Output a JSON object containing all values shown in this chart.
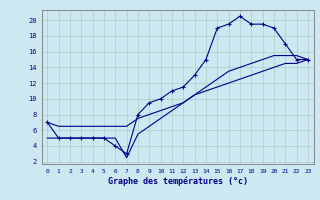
{
  "xlabel": "Graphe des températures (°c)",
  "x_hours": [
    0,
    1,
    2,
    3,
    4,
    5,
    6,
    7,
    8,
    9,
    10,
    11,
    12,
    13,
    14,
    15,
    16,
    17,
    18,
    19,
    20,
    21,
    22,
    23
  ],
  "line_curve": [
    7,
    5,
    5,
    5,
    5,
    5,
    4,
    3,
    8,
    9.5,
    10,
    11,
    11.5,
    13,
    15,
    19,
    19.5,
    20.5,
    19.5,
    19.5,
    19,
    17,
    15,
    15
  ],
  "line_straight1": [
    5,
    5,
    5,
    5,
    5,
    5,
    5,
    2.5,
    5.5,
    6.5,
    7.5,
    8.5,
    9.5,
    10.5,
    11,
    11.5,
    12,
    12.5,
    13,
    13.5,
    14,
    14.5,
    14.5,
    15
  ],
  "line_straight2": [
    7,
    6.5,
    6.5,
    6.5,
    6.5,
    6.5,
    6.5,
    6.5,
    7.5,
    8,
    8.5,
    9,
    9.5,
    10.5,
    11.5,
    12.5,
    13.5,
    14,
    14.5,
    15,
    15.5,
    15.5,
    15.5,
    15
  ],
  "bg_color": "#cce8f0",
  "line_color": "#00008b",
  "grid_color": "#aacccc",
  "ymin": 2,
  "ymax": 21,
  "xmin": 0,
  "xmax": 23,
  "yticks": [
    2,
    4,
    6,
    8,
    10,
    12,
    14,
    16,
    18,
    20
  ],
  "xticks": [
    0,
    1,
    2,
    3,
    4,
    5,
    6,
    7,
    8,
    9,
    10,
    11,
    12,
    13,
    14,
    15,
    16,
    17,
    18,
    19,
    20,
    21,
    22,
    23
  ]
}
